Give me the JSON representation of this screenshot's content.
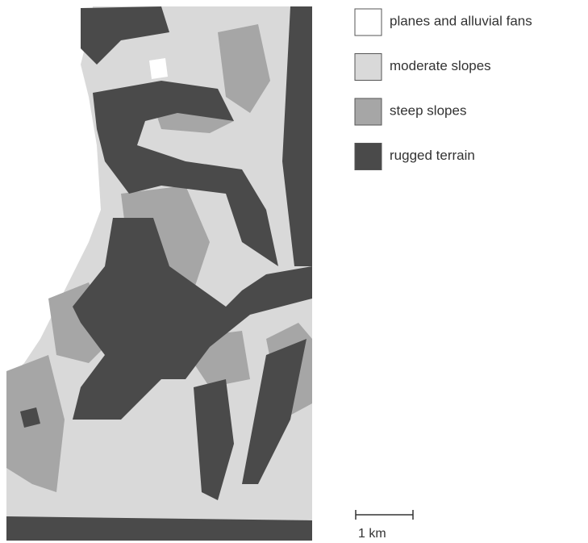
{
  "legend": [
    {
      "label": "planes and alluvial fans",
      "color": "#ffffff"
    },
    {
      "label": "moderate slopes",
      "color": "#d9d9d9"
    },
    {
      "label": "steep slopes",
      "color": "#a6a6a6"
    },
    {
      "label": "rugged terrain",
      "color": "#4a4a4a"
    }
  ],
  "scale_bar": {
    "label": "1 km"
  }
}
